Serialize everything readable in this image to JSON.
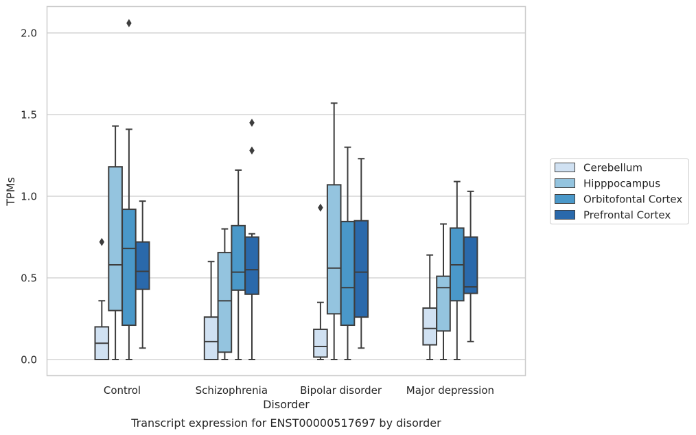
{
  "chart_data": {
    "type": "box",
    "caption": "Transcript expression for ENST00000517697 by disorder",
    "xlabel": "Disorder",
    "ylabel": "TPMs",
    "ylim": [
      -0.1,
      2.17
    ],
    "yticks": [
      0.0,
      0.5,
      1.0,
      1.5,
      2.0
    ],
    "ytick_labels": [
      "0.0",
      "0.5",
      "1.0",
      "1.5",
      "2.0"
    ],
    "grid": "horizontal",
    "legend_position": "right",
    "categories": [
      "Control",
      "Schizophrenia",
      "Bipolar disorder",
      "Major depression"
    ],
    "series": [
      {
        "name": "Cerebellum",
        "color": "#d0e1f2",
        "boxes": [
          {
            "whisker_low": 0.0,
            "q1": 0.0,
            "median": 0.1,
            "q3": 0.2,
            "whisker_high": 0.36,
            "outliers": [
              0.72
            ]
          },
          {
            "whisker_low": 0.0,
            "q1": 0.0,
            "median": 0.11,
            "q3": 0.26,
            "whisker_high": 0.6,
            "outliers": []
          },
          {
            "whisker_low": 0.0,
            "q1": 0.015,
            "median": 0.08,
            "q3": 0.185,
            "whisker_high": 0.35,
            "outliers": [
              0.93
            ]
          },
          {
            "whisker_low": 0.0,
            "q1": 0.09,
            "median": 0.19,
            "q3": 0.315,
            "whisker_high": 0.64,
            "outliers": []
          }
        ]
      },
      {
        "name": "Hipppocampus",
        "color": "#94c4df",
        "boxes": [
          {
            "whisker_low": 0.0,
            "q1": 0.3,
            "median": 0.58,
            "q3": 1.18,
            "whisker_high": 1.43,
            "outliers": []
          },
          {
            "whisker_low": 0.0,
            "q1": 0.045,
            "median": 0.36,
            "q3": 0.655,
            "whisker_high": 0.8,
            "outliers": []
          },
          {
            "whisker_low": 0.0,
            "q1": 0.28,
            "median": 0.56,
            "q3": 1.07,
            "whisker_high": 1.57,
            "outliers": []
          },
          {
            "whisker_low": 0.0,
            "q1": 0.175,
            "median": 0.44,
            "q3": 0.51,
            "whisker_high": 0.83,
            "outliers": []
          }
        ]
      },
      {
        "name": "Orbitofontal Cortex",
        "color": "#4a98c9",
        "boxes": [
          {
            "whisker_low": 0.0,
            "q1": 0.21,
            "median": 0.68,
            "q3": 0.92,
            "whisker_high": 1.41,
            "outliers": [
              2.06
            ]
          },
          {
            "whisker_low": 0.0,
            "q1": 0.425,
            "median": 0.535,
            "q3": 0.82,
            "whisker_high": 1.16,
            "outliers": []
          },
          {
            "whisker_low": 0.0,
            "q1": 0.21,
            "median": 0.44,
            "q3": 0.845,
            "whisker_high": 1.3,
            "outliers": []
          },
          {
            "whisker_low": 0.0,
            "q1": 0.36,
            "median": 0.58,
            "q3": 0.805,
            "whisker_high": 1.09,
            "outliers": []
          }
        ]
      },
      {
        "name": "Prefrontal Cortex",
        "color": "#2a69ab",
        "boxes": [
          {
            "whisker_low": 0.07,
            "q1": 0.43,
            "median": 0.54,
            "q3": 0.72,
            "whisker_high": 0.97,
            "outliers": []
          },
          {
            "whisker_low": 0.0,
            "q1": 0.4,
            "median": 0.55,
            "q3": 0.75,
            "whisker_high": 0.77,
            "outliers": [
              1.28,
              1.45
            ]
          },
          {
            "whisker_low": 0.07,
            "q1": 0.26,
            "median": 0.535,
            "q3": 0.85,
            "whisker_high": 1.23,
            "outliers": []
          },
          {
            "whisker_low": 0.11,
            "q1": 0.405,
            "median": 0.445,
            "q3": 0.75,
            "whisker_high": 1.03,
            "outliers": []
          }
        ]
      }
    ]
  }
}
